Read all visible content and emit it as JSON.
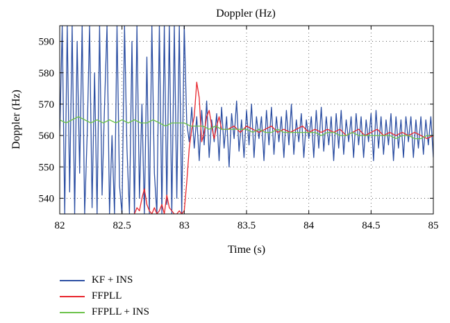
{
  "chart_data": {
    "type": "line",
    "title": "Doppler (Hz)",
    "xlabel": "Time (s)",
    "ylabel": "Doppler (Hz)",
    "xlim": [
      82,
      85
    ],
    "ylim": [
      535,
      595
    ],
    "xticks": [
      82,
      82.5,
      83,
      83.5,
      84,
      84.5,
      85
    ],
    "xtick_labels": [
      "82",
      "82.5",
      "83",
      "83.5",
      "84",
      "84.5",
      "85"
    ],
    "yticks": [
      540,
      550,
      560,
      570,
      580,
      590
    ],
    "ytick_labels": [
      "540",
      "550",
      "560",
      "570",
      "580",
      "590"
    ],
    "grid": true,
    "legend_position": "below-left",
    "series": [
      {
        "name": "KF + INS",
        "color": "#2b4ea2",
        "x": [
          82.0,
          82.02,
          82.04,
          82.06,
          82.08,
          82.1,
          82.12,
          82.14,
          82.16,
          82.18,
          82.2,
          82.22,
          82.24,
          82.26,
          82.28,
          82.3,
          82.32,
          82.34,
          82.36,
          82.38,
          82.4,
          82.42,
          82.44,
          82.46,
          82.48,
          82.5,
          82.52,
          82.54,
          82.56,
          82.58,
          82.6,
          82.62,
          82.64,
          82.66,
          82.68,
          82.7,
          82.72,
          82.74,
          82.76,
          82.78,
          82.8,
          82.82,
          82.84,
          82.86,
          82.88,
          82.9,
          82.92,
          82.94,
          82.96,
          82.98,
          83.0,
          83.02,
          83.04,
          83.06,
          83.08,
          83.1,
          83.12,
          83.14,
          83.16,
          83.18,
          83.2,
          83.22,
          83.24,
          83.26,
          83.28,
          83.3,
          83.32,
          83.34,
          83.36,
          83.38,
          83.4,
          83.42,
          83.44,
          83.46,
          83.48,
          83.5,
          83.52,
          83.54,
          83.56,
          83.58,
          83.6,
          83.62,
          83.64,
          83.66,
          83.68,
          83.7,
          83.72,
          83.74,
          83.76,
          83.78,
          83.8,
          83.82,
          83.84,
          83.86,
          83.88,
          83.9,
          83.92,
          83.94,
          83.96,
          83.98,
          84.0,
          84.02,
          84.04,
          84.06,
          84.08,
          84.1,
          84.12,
          84.14,
          84.16,
          84.18,
          84.2,
          84.22,
          84.24,
          84.26,
          84.28,
          84.3,
          84.32,
          84.34,
          84.36,
          84.38,
          84.4,
          84.42,
          84.44,
          84.46,
          84.48,
          84.5,
          84.52,
          84.54,
          84.56,
          84.58,
          84.6,
          84.62,
          84.64,
          84.66,
          84.68,
          84.7,
          84.72,
          84.74,
          84.76,
          84.78,
          84.8,
          84.82,
          84.84,
          84.86,
          84.88,
          84.9,
          84.92,
          84.94,
          84.96,
          84.98,
          85.0
        ],
        "y": [
          560,
          595,
          535,
          595,
          542,
          595,
          535,
          590,
          548,
          595,
          535,
          560,
          595,
          537,
          580,
          535,
          595,
          541,
          570,
          595,
          535,
          560,
          535,
          595,
          544,
          535,
          595,
          556,
          535,
          590,
          535,
          595,
          540,
          570,
          535,
          585,
          535,
          595,
          548,
          535,
          595,
          535,
          595,
          538,
          595,
          535,
          595,
          540,
          595,
          535,
          595,
          564,
          558,
          569,
          556,
          566,
          552,
          568,
          557,
          571,
          553,
          565,
          558,
          567,
          552,
          569,
          556,
          566,
          550,
          567,
          559,
          571,
          555,
          565,
          553,
          568,
          557,
          570,
          553,
          566,
          559,
          566,
          552,
          568,
          557,
          569,
          554,
          566,
          558,
          566,
          553,
          568,
          557,
          570,
          554,
          565,
          558,
          567,
          553,
          565,
          559,
          566,
          553,
          568,
          556,
          569,
          555,
          566,
          557,
          566,
          552,
          567,
          556,
          568,
          554,
          565,
          558,
          566,
          553,
          567,
          557,
          566,
          553,
          565,
          558,
          567,
          552,
          568,
          556,
          566,
          554,
          565,
          557,
          567,
          552,
          566,
          556,
          565,
          553,
          566,
          558,
          566,
          553,
          565,
          556,
          566,
          554,
          565,
          557,
          566,
          553
        ]
      },
      {
        "name": "FFPLL",
        "color": "#e8242b",
        "x": [
          82.6,
          82.62,
          82.64,
          82.66,
          82.68,
          82.7,
          82.72,
          82.74,
          82.76,
          82.78,
          82.8,
          82.82,
          82.84,
          82.86,
          82.88,
          82.9,
          82.92,
          82.94,
          82.96,
          82.98,
          83.0,
          83.02,
          83.04,
          83.06,
          83.08,
          83.1,
          83.12,
          83.14,
          83.16,
          83.18,
          83.2,
          83.22,
          83.24,
          83.26,
          83.28,
          83.3,
          83.35,
          83.4,
          83.45,
          83.5,
          83.55,
          83.6,
          83.65,
          83.7,
          83.75,
          83.8,
          83.85,
          83.9,
          83.95,
          84.0,
          84.05,
          84.1,
          84.15,
          84.2,
          84.25,
          84.3,
          84.35,
          84.4,
          84.45,
          84.5,
          84.55,
          84.6,
          84.65,
          84.7,
          84.75,
          84.8,
          84.85,
          84.9,
          84.95,
          85.0
        ],
        "y": [
          535,
          537,
          536,
          540,
          543,
          538,
          536,
          535,
          537,
          535,
          536,
          538,
          535,
          541,
          537,
          536,
          535,
          535,
          536,
          535,
          536,
          545,
          556,
          562,
          566,
          577,
          572,
          558,
          561,
          566,
          568,
          563,
          559,
          563,
          566,
          562,
          562,
          563,
          561,
          563,
          562,
          561,
          562,
          563,
          561,
          562,
          561,
          562,
          563,
          561,
          562,
          561,
          562,
          561,
          562,
          560,
          561,
          562,
          560,
          561,
          562,
          560,
          561,
          560,
          561,
          560,
          561,
          560,
          559,
          560
        ]
      },
      {
        "name": "FFPLL + INS",
        "color": "#6cc24a",
        "x": [
          82.0,
          82.05,
          82.1,
          82.15,
          82.2,
          82.25,
          82.3,
          82.35,
          82.4,
          82.45,
          82.5,
          82.55,
          82.6,
          82.65,
          82.7,
          82.75,
          82.8,
          82.85,
          82.9,
          82.95,
          83.0,
          83.05,
          83.1,
          83.15,
          83.2,
          83.25,
          83.3,
          83.35,
          83.4,
          83.45,
          83.5,
          83.55,
          83.6,
          83.65,
          83.7,
          83.75,
          83.8,
          83.85,
          83.9,
          83.95,
          84.0,
          84.05,
          84.1,
          84.15,
          84.2,
          84.25,
          84.3,
          84.35,
          84.4,
          84.45,
          84.5,
          84.55,
          84.6,
          84.65,
          84.7,
          84.75,
          84.8,
          84.85,
          84.9,
          84.95,
          85.0
        ],
        "y": [
          565,
          564,
          565,
          566,
          565,
          564,
          565,
          564,
          565,
          564,
          565,
          564,
          565,
          564,
          564,
          565,
          564,
          563,
          564,
          564,
          564,
          563,
          563,
          563,
          562,
          563,
          562,
          562,
          562,
          562,
          562,
          561,
          562,
          561,
          561,
          562,
          561,
          561,
          561,
          561,
          561,
          561,
          560,
          561,
          561,
          560,
          560,
          561,
          560,
          560,
          560,
          560,
          560,
          560,
          559,
          560,
          560,
          559,
          559,
          560,
          560
        ]
      }
    ]
  }
}
